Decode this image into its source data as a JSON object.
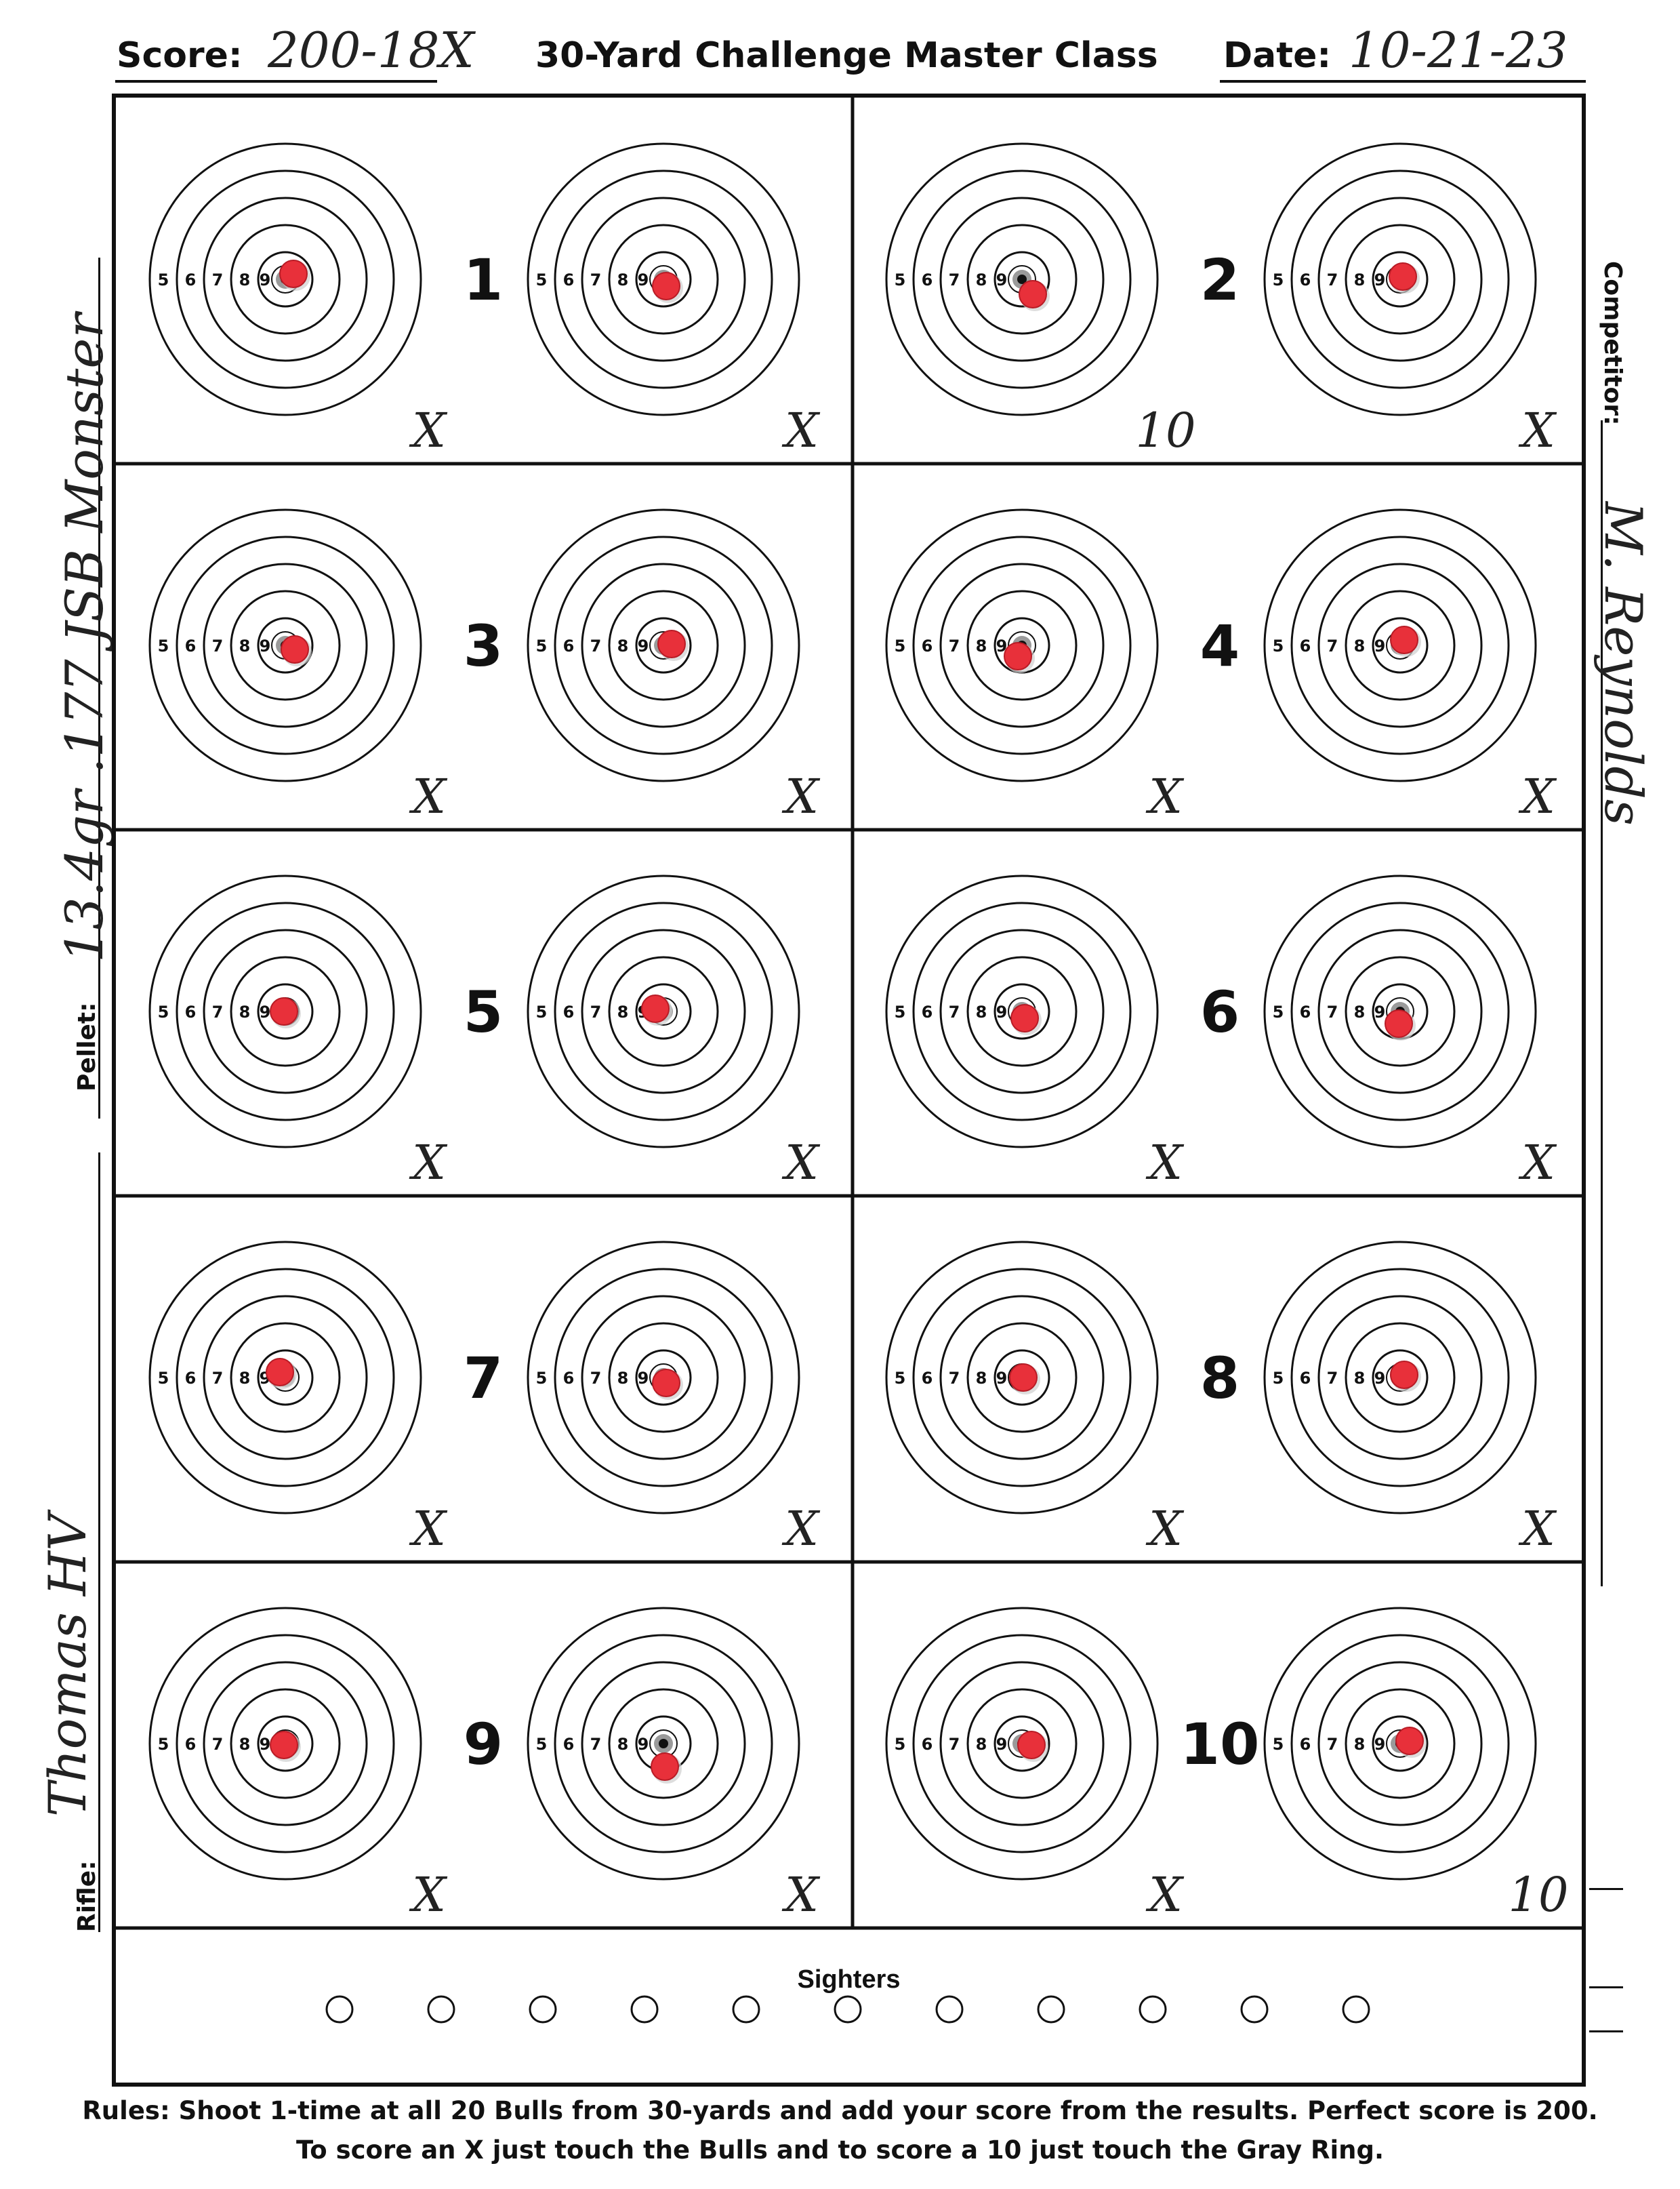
{
  "header": {
    "score_label": "Score:",
    "score_value": "200-18X",
    "title": "30-Yard Challenge Master Class",
    "date_label": "Date:",
    "date_value": "10-21-23"
  },
  "side": {
    "competitor_label": "Competitor:",
    "competitor_value": "M. Reynolds",
    "pellet_label": "Pellet:",
    "pellet_value": "13.4gr .177 JSB Monster",
    "rifle_label": "Rifle:",
    "rifle_value": "Thomas HV"
  },
  "ring_labels": [
    "5",
    "6",
    "7",
    "8",
    "9"
  ],
  "targets": [
    {
      "number": "1",
      "left_mark": "X",
      "right_mark": "X",
      "left_shot": [
        0.3,
        -0.2
      ],
      "right_shot": [
        0.1,
        0.25
      ]
    },
    {
      "number": "2",
      "left_mark": "10",
      "right_mark": "X",
      "left_shot": [
        0.4,
        0.55
      ],
      "right_shot": [
        0.1,
        -0.1
      ]
    },
    {
      "number": "3",
      "left_mark": "X",
      "right_mark": "X",
      "left_shot": [
        0.35,
        0.15
      ],
      "right_shot": [
        0.3,
        -0.05
      ]
    },
    {
      "number": "4",
      "left_mark": "X",
      "right_mark": "X",
      "left_shot": [
        -0.15,
        0.4
      ],
      "right_shot": [
        0.15,
        -0.2
      ]
    },
    {
      "number": "5",
      "left_mark": "X",
      "right_mark": "X",
      "left_shot": [
        -0.05,
        0.0
      ],
      "right_shot": [
        -0.3,
        -0.1
      ]
    },
    {
      "number": "6",
      "left_mark": "X",
      "right_mark": "X",
      "left_shot": [
        0.1,
        0.25
      ],
      "right_shot": [
        -0.05,
        0.45
      ]
    },
    {
      "number": "7",
      "left_mark": "X",
      "right_mark": "X",
      "left_shot": [
        -0.2,
        -0.2
      ],
      "right_shot": [
        0.1,
        0.2
      ]
    },
    {
      "number": "8",
      "left_mark": "X",
      "right_mark": "X",
      "left_shot": [
        0.05,
        0.0
      ],
      "right_shot": [
        0.15,
        -0.1
      ]
    },
    {
      "number": "9",
      "left_mark": "X",
      "right_mark": "X",
      "left_shot": [
        -0.05,
        0.05
      ],
      "right_shot": [
        0.05,
        0.85
      ]
    },
    {
      "number": "10",
      "left_mark": "X",
      "right_mark": "10",
      "left_shot": [
        0.35,
        0.05
      ],
      "right_shot": [
        0.35,
        -0.1
      ]
    }
  ],
  "sighters": {
    "title": "Sighters",
    "count": 11
  },
  "rules": {
    "line1": "Rules: Shoot 1-time at all 20 Bulls from 30-yards and add your score from the results. Perfect score is 200.",
    "line2": "To score an X just touch the Bulls and to score a 10 just touch the Gray Ring."
  },
  "colors": {
    "ink": "#111111",
    "shot": "#e8303a",
    "shot_dark": "#b81c26",
    "gray_ring": "#9a9a9a"
  }
}
